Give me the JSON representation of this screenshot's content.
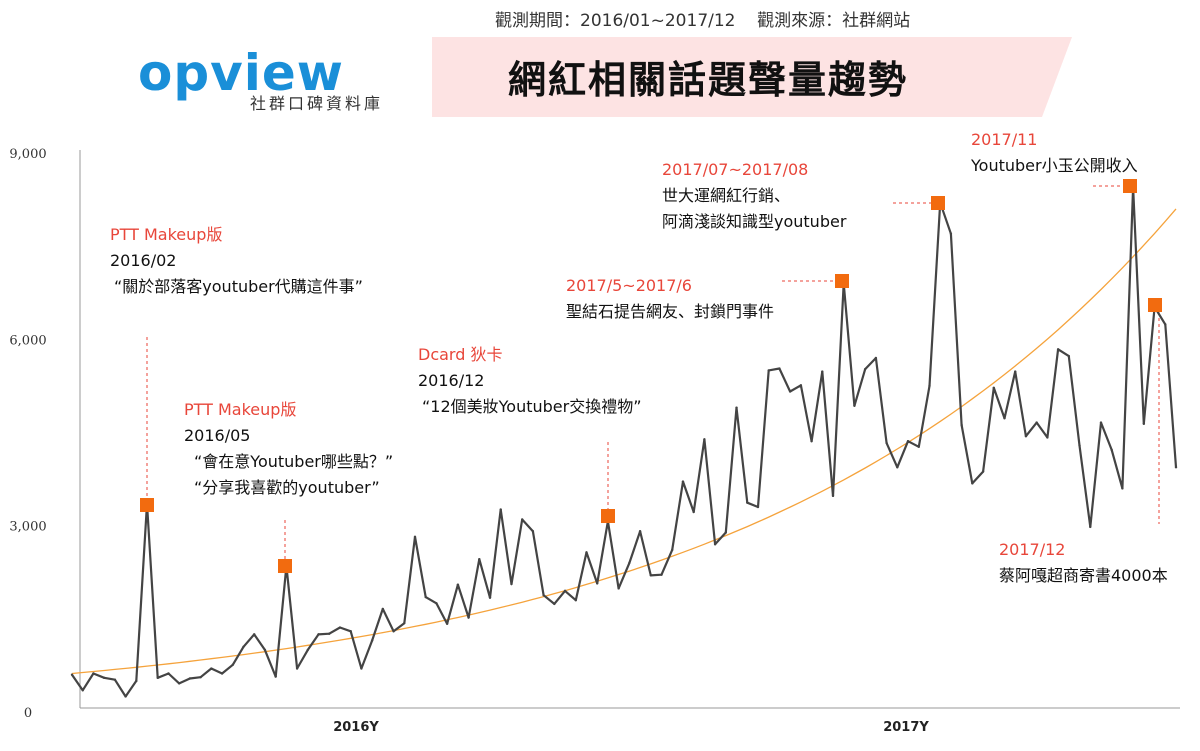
{
  "header": {
    "period": "觀測期間：2016/01~2017/12",
    "source": "觀測來源：社群網站",
    "logo_text": "opview",
    "logo_sub": "社群口碑資料庫",
    "title": "網紅相關話題聲量趨勢"
  },
  "colors": {
    "line": "#444444",
    "trend": "#f5a33c",
    "marker": "#f26b0f",
    "annotation_red": "#e8463a",
    "logo_blue": "#1a8fd8",
    "banner": "#fde3e3"
  },
  "chart_data": {
    "type": "line",
    "title": "網紅相關話題聲量趨勢",
    "xlabel": "",
    "ylabel": "",
    "ylim": [
      0,
      9000
    ],
    "yticks": [
      0,
      3000,
      6000,
      9000
    ],
    "ytick_labels": [
      "0",
      "3,000",
      "6,000",
      "9,000"
    ],
    "xtick_labels": [
      "2016Y",
      "2017Y"
    ],
    "x_range": [
      "2016/01",
      "2017/12"
    ],
    "grid": false,
    "series": [
      {
        "values": [
          600,
          350,
          620,
          550,
          520,
          250,
          500,
          3350,
          550,
          620,
          460,
          540,
          560,
          700,
          620,
          760,
          1050,
          1250,
          1000,
          570,
          2350,
          700,
          1000,
          1250,
          1260,
          1360,
          1300,
          700,
          1150,
          1660,
          1300,
          1430,
          2820,
          1850,
          1750,
          1420,
          2050,
          1520,
          2460,
          1840,
          3260,
          2060,
          3100,
          2910,
          1880,
          1740,
          1950,
          1800,
          2570,
          2070,
          3070,
          1990,
          2400,
          2910,
          2200,
          2210,
          2610,
          3710,
          3220,
          4390,
          2700,
          2890,
          4900,
          3370,
          3300,
          5500,
          5530,
          5160,
          5260,
          4360,
          5480,
          3480,
          6900,
          4930,
          5520,
          5700,
          4330,
          3940,
          4360,
          4270,
          5250,
          8200,
          7700,
          4620,
          3680,
          3870,
          5220,
          4730,
          5480,
          4440,
          4660,
          4420,
          5840,
          5730,
          4290,
          2980,
          4660,
          4220,
          3600,
          8450,
          4640,
          6520,
          6240,
          3940
        ]
      }
    ],
    "highlights": [
      {
        "date": "2016/02",
        "value": 3300
      },
      {
        "date": "2016/05",
        "value": 2400
      },
      {
        "date": "2016/12",
        "value": 3150
      },
      {
        "date": "2017/06",
        "value": 6900
      },
      {
        "date": "2017/08",
        "value": 8200
      },
      {
        "date": "2017/11",
        "value": 8450
      },
      {
        "date": "2017/12",
        "value": 6550
      }
    ],
    "trendline": {
      "type": "exponential",
      "start": 620,
      "end": 8100
    },
    "annotations": [
      {
        "title": "PTT Makeup版",
        "lines": [
          "2016/02",
          "“關於部落客youtuber代購這件事”"
        ]
      },
      {
        "title": "PTT Makeup版",
        "lines": [
          "2016/05",
          "“會在意Youtuber哪些點？”",
          "“分享我喜歡的youtuber”"
        ]
      },
      {
        "title": "Dcard 狄卡",
        "lines": [
          "2016/12",
          "“12個美妝Youtuber交換禮物”"
        ]
      },
      {
        "title": "2017/5~2017/6",
        "lines": [
          "聖結石提告網友、封鎖門事件"
        ]
      },
      {
        "title": "2017/07~2017/08",
        "lines": [
          "世大運網紅行銷、",
          "阿滴淺談知識型youtuber"
        ]
      },
      {
        "title": "2017/11",
        "lines": [
          "Youtuber小玉公開收入"
        ]
      },
      {
        "title": "2017/12",
        "lines": [
          "蔡阿嘎超商寄書4000本"
        ]
      }
    ]
  }
}
